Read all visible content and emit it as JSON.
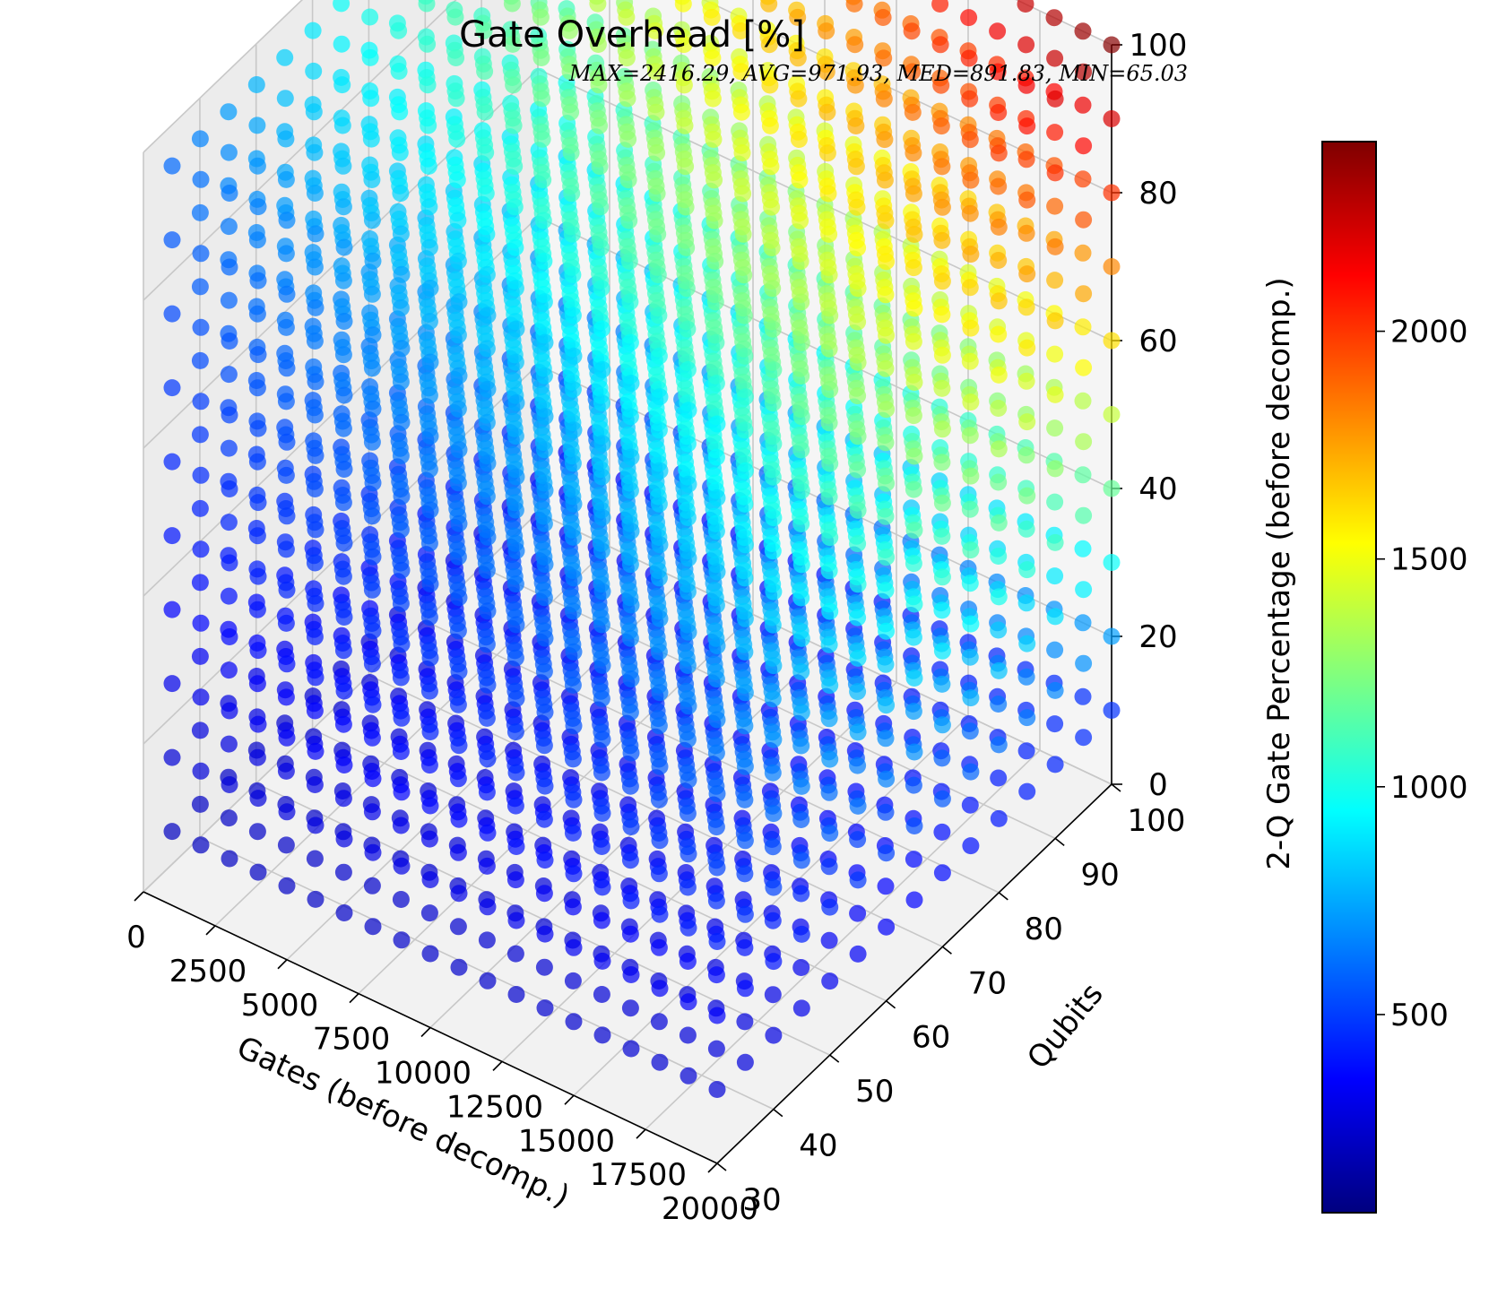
{
  "chart_data": {
    "type": "scatter",
    "projection": "3d",
    "title": "Gate Overhead [%]",
    "subtitle": "MAX=2416.29, AVG=971.93, MED=891.83, MIN=65.03",
    "xlabel": "Gates (before decomp.)",
    "ylabel": "Qubits",
    "zlabel": "2-Q Gate Percentage (before decomp.)",
    "colorbar_label": "",
    "colormap": "jet",
    "color_range": [
      65.03,
      2416.29
    ],
    "stats": {
      "max": 2416.29,
      "avg": 971.93,
      "med": 891.83,
      "min": 65.03
    },
    "xlim": [
      0,
      20000
    ],
    "ylim": [
      30,
      100
    ],
    "zlim": [
      0,
      100
    ],
    "x_ticks": [
      "0",
      "2500",
      "5000",
      "7500",
      "10000",
      "12500",
      "15000",
      "17500",
      "20000"
    ],
    "y_ticks": [
      "30",
      "40",
      "50",
      "60",
      "70",
      "80",
      "90",
      "100"
    ],
    "z_ticks": [
      "0",
      "20",
      "40",
      "60",
      "80",
      "100"
    ],
    "colorbar_ticks": [
      "500",
      "1000",
      "1500",
      "2000"
    ],
    "grid": true,
    "sampling": {
      "gates": [
        1000,
        2000,
        3000,
        4000,
        5000,
        6000,
        7000,
        8000,
        9000,
        10000,
        11000,
        12000,
        13000,
        14000,
        15000,
        16000,
        17000,
        18000,
        19000,
        20000
      ],
      "qubits": [
        30,
        35,
        40,
        45,
        50,
        55,
        60,
        65,
        70,
        75,
        80,
        85,
        90,
        95,
        100
      ],
      "two_q_pct": [
        10,
        20,
        30,
        40,
        50,
        60,
        70,
        80,
        90,
        100
      ]
    }
  }
}
